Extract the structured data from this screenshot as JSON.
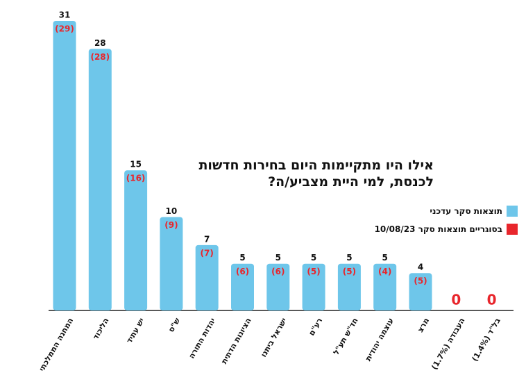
{
  "chart_data": {
    "type": "bar",
    "title": "אילו היו מתקיימות היום בחירות חדשות לכנסת, למי היית מצביע/ה?",
    "categories": [
      "המחנה הממלכתי",
      "הליכוד",
      "יש עתיד",
      "ש\"ס",
      "יהדות התורה",
      "הציונות הדתית",
      "ישראל ביתנו",
      "רע\"ם",
      "חד\"ש תע\"ל",
      "עוצמה יהודית",
      "מרצ",
      "העבודה (1.7%)",
      "בל\"ד (1.4%)"
    ],
    "series": [
      {
        "name": "תוצאות סקר עדכני",
        "color": "#6ec6ea",
        "values": [
          31,
          28,
          15,
          10,
          7,
          5,
          5,
          5,
          5,
          5,
          4,
          0,
          0
        ]
      },
      {
        "name": "בסוגריים תוצאות סקר 10/08/23",
        "color": "#e8262c",
        "values": [
          29,
          28,
          16,
          9,
          7,
          6,
          6,
          5,
          5,
          4,
          5,
          null,
          null
        ],
        "value_labels": [
          "(29)",
          "(28)",
          "(16)",
          "(9)",
          "(7)",
          "(6)",
          "(6)",
          "(5)",
          "(5)",
          "(4)",
          "(5)",
          null,
          null
        ]
      }
    ]
  }
}
